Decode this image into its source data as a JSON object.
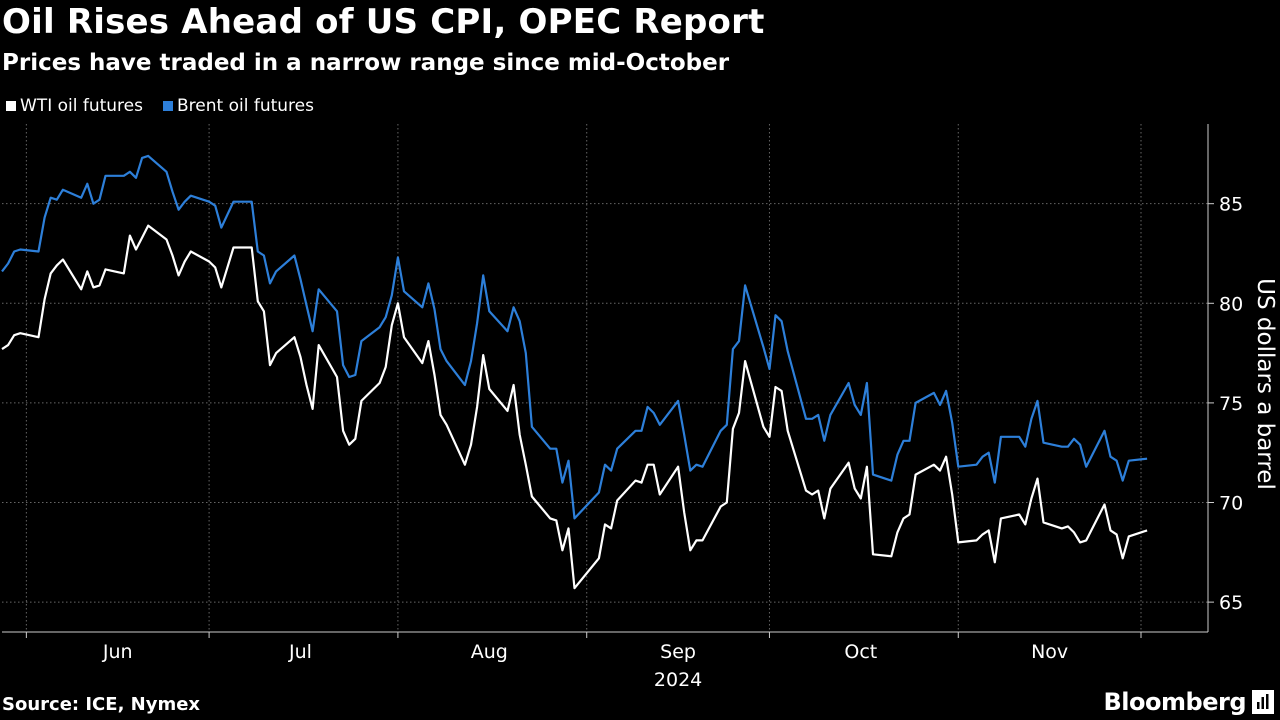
{
  "header": {
    "title": "Oil Rises Ahead of US CPI, OPEC Report",
    "subtitle": "Prices have traded in a narrow range since mid-October"
  },
  "footer": {
    "source": "Source: ICE, Nymex",
    "brand": "Bloomberg"
  },
  "colors": {
    "background": "#000000",
    "wti": "#ffffff",
    "brent": "#2d7fd9",
    "grid": "#666666"
  },
  "chart_data": {
    "type": "line",
    "title": "Oil Rises Ahead of US CPI, OPEC Report",
    "subtitle": "Prices have traded in a narrow range since mid-October",
    "ylabel": "US dollars a barrel",
    "year_label": "2024",
    "ylim": [
      63.5,
      89
    ],
    "yticks": [
      65,
      70,
      75,
      80,
      85
    ],
    "y_axis_position": "right",
    "grid": true,
    "legend_position": "top-left",
    "x_range": [
      "2024-05-28",
      "2024-12-12"
    ],
    "month_ticks": [
      "2024-06-01",
      "2024-07-01",
      "2024-08-01",
      "2024-09-01",
      "2024-10-01",
      "2024-11-01",
      "2024-12-01"
    ],
    "month_labels": [
      {
        "label": "Jun",
        "at": "2024-06-16"
      },
      {
        "label": "Jul",
        "at": "2024-07-16"
      },
      {
        "label": "Aug",
        "at": "2024-08-16"
      },
      {
        "label": "Sep",
        "at": "2024-09-16"
      },
      {
        "label": "Oct",
        "at": "2024-10-16"
      },
      {
        "label": "Nov",
        "at": "2024-11-16"
      }
    ],
    "series": [
      {
        "name": "WTI oil futures",
        "color": "#ffffff",
        "points": [
          [
            "2024-05-28",
            77.7
          ],
          [
            "2024-05-29",
            77.9
          ],
          [
            "2024-05-30",
            78.4
          ],
          [
            "2024-05-31",
            78.5
          ],
          [
            "2024-06-03",
            78.3
          ],
          [
            "2024-06-04",
            80.2
          ],
          [
            "2024-06-05",
            81.5
          ],
          [
            "2024-06-06",
            81.9
          ],
          [
            "2024-06-07",
            82.2
          ],
          [
            "2024-06-10",
            80.7
          ],
          [
            "2024-06-11",
            81.6
          ],
          [
            "2024-06-12",
            80.8
          ],
          [
            "2024-06-13",
            80.9
          ],
          [
            "2024-06-14",
            81.7
          ],
          [
            "2024-06-17",
            81.5
          ],
          [
            "2024-06-18",
            83.4
          ],
          [
            "2024-06-19",
            82.7
          ],
          [
            "2024-06-20",
            83.3
          ],
          [
            "2024-06-21",
            83.9
          ],
          [
            "2024-06-24",
            83.2
          ],
          [
            "2024-06-25",
            82.4
          ],
          [
            "2024-06-26",
            81.4
          ],
          [
            "2024-06-27",
            82.1
          ],
          [
            "2024-06-28",
            82.6
          ],
          [
            "2024-07-01",
            82.1
          ],
          [
            "2024-07-02",
            81.8
          ],
          [
            "2024-07-03",
            80.8
          ],
          [
            "2024-07-05",
            82.8
          ],
          [
            "2024-07-08",
            82.8
          ],
          [
            "2024-07-09",
            80.1
          ],
          [
            "2024-07-10",
            79.6
          ],
          [
            "2024-07-11",
            76.9
          ],
          [
            "2024-07-12",
            77.5
          ],
          [
            "2024-07-15",
            78.3
          ],
          [
            "2024-07-16",
            77.3
          ],
          [
            "2024-07-17",
            75.9
          ],
          [
            "2024-07-18",
            74.7
          ],
          [
            "2024-07-19",
            77.9
          ],
          [
            "2024-07-22",
            76.3
          ],
          [
            "2024-07-23",
            73.6
          ],
          [
            "2024-07-24",
            72.9
          ],
          [
            "2024-07-25",
            73.2
          ],
          [
            "2024-07-26",
            75.1
          ],
          [
            "2024-07-29",
            76.0
          ],
          [
            "2024-07-30",
            76.8
          ],
          [
            "2024-07-31",
            78.9
          ],
          [
            "2024-08-01",
            80.0
          ],
          [
            "2024-08-02",
            78.3
          ],
          [
            "2024-08-05",
            77.0
          ],
          [
            "2024-08-06",
            78.1
          ],
          [
            "2024-08-07",
            76.4
          ],
          [
            "2024-08-08",
            74.4
          ],
          [
            "2024-08-09",
            73.9
          ],
          [
            "2024-08-12",
            71.9
          ],
          [
            "2024-08-13",
            72.9
          ],
          [
            "2024-08-14",
            74.8
          ],
          [
            "2024-08-15",
            77.4
          ],
          [
            "2024-08-16",
            75.7
          ],
          [
            "2024-08-19",
            74.6
          ],
          [
            "2024-08-20",
            75.9
          ],
          [
            "2024-08-21",
            73.4
          ],
          [
            "2024-08-22",
            71.9
          ],
          [
            "2024-08-23",
            70.3
          ],
          [
            "2024-08-26",
            69.2
          ],
          [
            "2024-08-27",
            69.1
          ],
          [
            "2024-08-28",
            67.6
          ],
          [
            "2024-08-29",
            68.7
          ],
          [
            "2024-08-30",
            65.7
          ],
          [
            "2024-09-03",
            67.2
          ],
          [
            "2024-09-04",
            68.9
          ],
          [
            "2024-09-05",
            68.7
          ],
          [
            "2024-09-06",
            70.1
          ],
          [
            "2024-09-09",
            71.1
          ],
          [
            "2024-09-10",
            71.0
          ],
          [
            "2024-09-11",
            71.9
          ],
          [
            "2024-09-12",
            71.9
          ],
          [
            "2024-09-13",
            70.4
          ],
          [
            "2024-09-16",
            71.8
          ],
          [
            "2024-09-17",
            69.5
          ],
          [
            "2024-09-18",
            67.6
          ],
          [
            "2024-09-19",
            68.1
          ],
          [
            "2024-09-20",
            68.1
          ],
          [
            "2024-09-23",
            69.8
          ],
          [
            "2024-09-24",
            70.0
          ],
          [
            "2024-09-25",
            73.7
          ],
          [
            "2024-09-26",
            74.5
          ],
          [
            "2024-09-27",
            77.1
          ],
          [
            "2024-09-30",
            73.8
          ],
          [
            "2024-10-01",
            73.3
          ],
          [
            "2024-10-02",
            75.8
          ],
          [
            "2024-10-03",
            75.6
          ],
          [
            "2024-10-04",
            73.6
          ],
          [
            "2024-10-07",
            70.6
          ],
          [
            "2024-10-08",
            70.4
          ],
          [
            "2024-10-09",
            70.6
          ],
          [
            "2024-10-10",
            69.2
          ],
          [
            "2024-10-11",
            70.7
          ],
          [
            "2024-10-14",
            72.0
          ],
          [
            "2024-10-15",
            70.7
          ],
          [
            "2024-10-16",
            70.2
          ],
          [
            "2024-10-17",
            71.8
          ],
          [
            "2024-10-18",
            67.4
          ],
          [
            "2024-10-21",
            67.3
          ],
          [
            "2024-10-22",
            68.5
          ],
          [
            "2024-10-23",
            69.2
          ],
          [
            "2024-10-24",
            69.4
          ],
          [
            "2024-10-25",
            71.4
          ],
          [
            "2024-10-28",
            71.9
          ],
          [
            "2024-10-29",
            71.6
          ],
          [
            "2024-10-30",
            72.3
          ],
          [
            "2024-10-31",
            70.4
          ],
          [
            "2024-11-01",
            68.0
          ],
          [
            "2024-11-04",
            68.1
          ],
          [
            "2024-11-05",
            68.4
          ],
          [
            "2024-11-06",
            68.6
          ],
          [
            "2024-11-07",
            67.0
          ],
          [
            "2024-11-08",
            69.2
          ],
          [
            "2024-11-11",
            69.4
          ],
          [
            "2024-11-12",
            68.9
          ],
          [
            "2024-11-13",
            70.2
          ],
          [
            "2024-11-14",
            71.2
          ],
          [
            "2024-11-15",
            69.0
          ],
          [
            "2024-11-18",
            68.7
          ],
          [
            "2024-11-19",
            68.8
          ],
          [
            "2024-11-20",
            68.5
          ],
          [
            "2024-11-21",
            68.0
          ],
          [
            "2024-11-22",
            68.1
          ],
          [
            "2024-11-25",
            69.9
          ],
          [
            "2024-11-26",
            68.6
          ],
          [
            "2024-11-27",
            68.4
          ],
          [
            "2024-11-28",
            67.2
          ],
          [
            "2024-11-29",
            68.3
          ],
          [
            "2024-12-02",
            68.6
          ]
        ]
      },
      {
        "name": "Brent oil futures",
        "color": "#2d7fd9",
        "points": [
          [
            "2024-05-28",
            81.6
          ],
          [
            "2024-05-29",
            82.0
          ],
          [
            "2024-05-30",
            82.6
          ],
          [
            "2024-05-31",
            82.7
          ],
          [
            "2024-06-03",
            82.6
          ],
          [
            "2024-06-04",
            84.3
          ],
          [
            "2024-06-05",
            85.3
          ],
          [
            "2024-06-06",
            85.2
          ],
          [
            "2024-06-07",
            85.7
          ],
          [
            "2024-06-10",
            85.3
          ],
          [
            "2024-06-11",
            86.0
          ],
          [
            "2024-06-12",
            85.0
          ],
          [
            "2024-06-13",
            85.2
          ],
          [
            "2024-06-14",
            86.4
          ],
          [
            "2024-06-17",
            86.4
          ],
          [
            "2024-06-18",
            86.6
          ],
          [
            "2024-06-19",
            86.3
          ],
          [
            "2024-06-20",
            87.3
          ],
          [
            "2024-06-21",
            87.4
          ],
          [
            "2024-06-24",
            86.6
          ],
          [
            "2024-06-25",
            85.6
          ],
          [
            "2024-06-26",
            84.7
          ],
          [
            "2024-06-27",
            85.1
          ],
          [
            "2024-06-28",
            85.4
          ],
          [
            "2024-07-01",
            85.1
          ],
          [
            "2024-07-02",
            84.9
          ],
          [
            "2024-07-03",
            83.8
          ],
          [
            "2024-07-05",
            85.1
          ],
          [
            "2024-07-08",
            85.1
          ],
          [
            "2024-07-09",
            82.6
          ],
          [
            "2024-07-10",
            82.4
          ],
          [
            "2024-07-11",
            81.0
          ],
          [
            "2024-07-12",
            81.6
          ],
          [
            "2024-07-15",
            82.4
          ],
          [
            "2024-07-16",
            81.2
          ],
          [
            "2024-07-17",
            79.9
          ],
          [
            "2024-07-18",
            78.6
          ],
          [
            "2024-07-19",
            80.7
          ],
          [
            "2024-07-22",
            79.6
          ],
          [
            "2024-07-23",
            76.9
          ],
          [
            "2024-07-24",
            76.3
          ],
          [
            "2024-07-25",
            76.4
          ],
          [
            "2024-07-26",
            78.1
          ],
          [
            "2024-07-29",
            78.8
          ],
          [
            "2024-07-30",
            79.3
          ],
          [
            "2024-07-31",
            80.4
          ],
          [
            "2024-08-01",
            82.3
          ],
          [
            "2024-08-02",
            80.6
          ],
          [
            "2024-08-05",
            79.8
          ],
          [
            "2024-08-06",
            81.0
          ],
          [
            "2024-08-07",
            79.7
          ],
          [
            "2024-08-08",
            77.7
          ],
          [
            "2024-08-09",
            77.1
          ],
          [
            "2024-08-12",
            75.9
          ],
          [
            "2024-08-13",
            77.1
          ],
          [
            "2024-08-14",
            79.0
          ],
          [
            "2024-08-15",
            81.4
          ],
          [
            "2024-08-16",
            79.6
          ],
          [
            "2024-08-19",
            78.6
          ],
          [
            "2024-08-20",
            79.8
          ],
          [
            "2024-08-21",
            79.1
          ],
          [
            "2024-08-22",
            77.5
          ],
          [
            "2024-08-23",
            73.8
          ],
          [
            "2024-08-26",
            72.7
          ],
          [
            "2024-08-27",
            72.7
          ],
          [
            "2024-08-28",
            71.0
          ],
          [
            "2024-08-29",
            72.1
          ],
          [
            "2024-08-30",
            69.2
          ],
          [
            "2024-09-03",
            70.5
          ],
          [
            "2024-09-04",
            71.9
          ],
          [
            "2024-09-05",
            71.6
          ],
          [
            "2024-09-06",
            72.7
          ],
          [
            "2024-09-09",
            73.6
          ],
          [
            "2024-09-10",
            73.6
          ],
          [
            "2024-09-11",
            74.8
          ],
          [
            "2024-09-12",
            74.5
          ],
          [
            "2024-09-13",
            73.9
          ],
          [
            "2024-09-16",
            75.1
          ],
          [
            "2024-09-17",
            73.4
          ],
          [
            "2024-09-18",
            71.6
          ],
          [
            "2024-09-19",
            71.9
          ],
          [
            "2024-09-20",
            71.8
          ],
          [
            "2024-09-23",
            73.6
          ],
          [
            "2024-09-24",
            73.9
          ],
          [
            "2024-09-25",
            77.7
          ],
          [
            "2024-09-26",
            78.1
          ],
          [
            "2024-09-27",
            80.9
          ],
          [
            "2024-09-30",
            77.8
          ],
          [
            "2024-10-01",
            76.7
          ],
          [
            "2024-10-02",
            79.4
          ],
          [
            "2024-10-03",
            79.1
          ],
          [
            "2024-10-04",
            77.6
          ],
          [
            "2024-10-07",
            74.2
          ],
          [
            "2024-10-08",
            74.2
          ],
          [
            "2024-10-09",
            74.4
          ],
          [
            "2024-10-10",
            73.1
          ],
          [
            "2024-10-11",
            74.4
          ],
          [
            "2024-10-14",
            76.0
          ],
          [
            "2024-10-15",
            74.9
          ],
          [
            "2024-10-16",
            74.4
          ],
          [
            "2024-10-17",
            76.0
          ],
          [
            "2024-10-18",
            71.4
          ],
          [
            "2024-10-21",
            71.1
          ],
          [
            "2024-10-22",
            72.4
          ],
          [
            "2024-10-23",
            73.1
          ],
          [
            "2024-10-24",
            73.1
          ],
          [
            "2024-10-25",
            75.0
          ],
          [
            "2024-10-28",
            75.5
          ],
          [
            "2024-10-29",
            74.9
          ],
          [
            "2024-10-30",
            75.6
          ],
          [
            "2024-10-31",
            74.0
          ],
          [
            "2024-11-01",
            71.8
          ],
          [
            "2024-11-04",
            71.9
          ],
          [
            "2024-11-05",
            72.3
          ],
          [
            "2024-11-06",
            72.5
          ],
          [
            "2024-11-07",
            71.0
          ],
          [
            "2024-11-08",
            73.3
          ],
          [
            "2024-11-11",
            73.3
          ],
          [
            "2024-11-12",
            72.8
          ],
          [
            "2024-11-13",
            74.2
          ],
          [
            "2024-11-14",
            75.1
          ],
          [
            "2024-11-15",
            73.0
          ],
          [
            "2024-11-18",
            72.8
          ],
          [
            "2024-11-19",
            72.8
          ],
          [
            "2024-11-20",
            73.2
          ],
          [
            "2024-11-21",
            72.9
          ],
          [
            "2024-11-22",
            71.8
          ],
          [
            "2024-11-25",
            73.6
          ],
          [
            "2024-11-26",
            72.3
          ],
          [
            "2024-11-27",
            72.1
          ],
          [
            "2024-11-28",
            71.1
          ],
          [
            "2024-11-29",
            72.1
          ],
          [
            "2024-12-02",
            72.2
          ]
        ]
      }
    ]
  }
}
